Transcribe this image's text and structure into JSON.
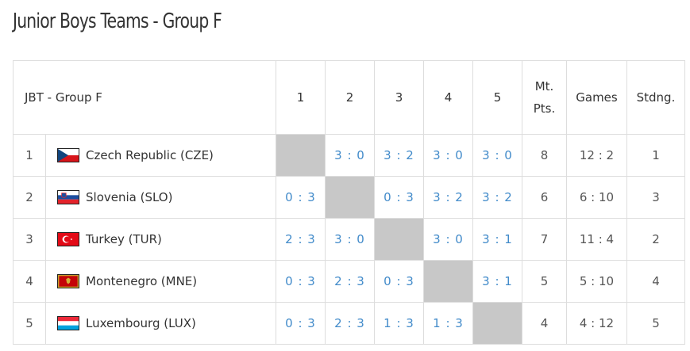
{
  "title": "Junior Boys Teams - Group F",
  "table": {
    "headers": {
      "group": "JBT - Group F",
      "cols": [
        "1",
        "2",
        "3",
        "4",
        "5"
      ],
      "mt_pts_line1": "Mt.",
      "mt_pts_line2": "Pts.",
      "games": "Games",
      "standing": "Stdng."
    },
    "rows": [
      {
        "pos": "1",
        "team": "Czech Republic (CZE)",
        "flag_icon": "flag-czech-republic-icon",
        "results": [
          "",
          "3 : 0",
          "3 : 2",
          "3 : 0",
          "3 : 0"
        ],
        "self_index": 0,
        "mt_pts": "8",
        "games": "12 : 2",
        "standing": "1"
      },
      {
        "pos": "2",
        "team": "Slovenia (SLO)",
        "flag_icon": "flag-slovenia-icon",
        "results": [
          "0 : 3",
          "",
          "0 : 3",
          "3 : 2",
          "3 : 2"
        ],
        "self_index": 1,
        "mt_pts": "6",
        "games": "6 : 10",
        "standing": "3"
      },
      {
        "pos": "3",
        "team": "Turkey (TUR)",
        "flag_icon": "flag-turkey-icon",
        "results": [
          "2 : 3",
          "3 : 0",
          "",
          "3 : 0",
          "3 : 1"
        ],
        "self_index": 2,
        "mt_pts": "7",
        "games": "11 : 4",
        "standing": "2"
      },
      {
        "pos": "4",
        "team": "Montenegro (MNE)",
        "flag_icon": "flag-montenegro-icon",
        "results": [
          "0 : 3",
          "2 : 3",
          "0 : 3",
          "",
          "3 : 1"
        ],
        "self_index": 3,
        "mt_pts": "5",
        "games": "5 : 10",
        "standing": "4"
      },
      {
        "pos": "5",
        "team": "Luxembourg (LUX)",
        "flag_icon": "flag-luxembourg-icon",
        "results": [
          "0 : 3",
          "2 : 3",
          "1 : 3",
          "1 : 3",
          ""
        ],
        "self_index": 4,
        "mt_pts": "4",
        "games": "4 : 12",
        "standing": "5"
      }
    ]
  },
  "colors": {
    "link": "#428bca",
    "self_cell": "#c8c8c8",
    "border": "#dddddd"
  }
}
